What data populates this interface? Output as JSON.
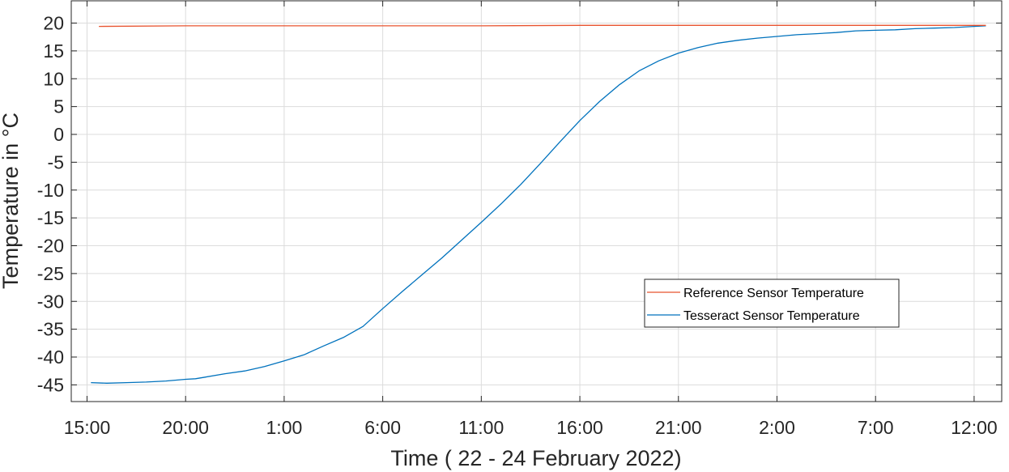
{
  "chart_data": {
    "type": "line",
    "xlabel": "Time ( 22 - 24 February 2022)",
    "ylabel": "Temperature in °C",
    "x_unit": "hours from 22 February 2022 00:00",
    "xlim": [
      14.2,
      61.4
    ],
    "ylim": [
      -48,
      24
    ],
    "x_ticks": [
      15,
      20,
      25,
      30,
      35,
      40,
      45,
      50,
      55,
      60
    ],
    "x_tick_labels": [
      "15:00",
      "20:00",
      "1:00",
      "6:00",
      "11:00",
      "16:00",
      "21:00",
      "2:00",
      "7:00",
      "12:00"
    ],
    "y_ticks": [
      -45,
      -40,
      -35,
      -30,
      -25,
      -20,
      -15,
      -10,
      -5,
      0,
      5,
      10,
      15,
      20
    ],
    "y_tick_labels": [
      "-45",
      "-40",
      "-35",
      "-30",
      "-25",
      "-20",
      "-15",
      "-10",
      "-5",
      "0",
      "5",
      "10",
      "15",
      "20"
    ],
    "grid": true,
    "legend_position": "lower-right",
    "series": [
      {
        "name": "Reference Sensor Temperature",
        "color": "#e8532f",
        "x": [
          15.6,
          20,
          25,
          30,
          35,
          40,
          45,
          50,
          55,
          60.6
        ],
        "y": [
          19.4,
          19.5,
          19.5,
          19.5,
          19.5,
          19.6,
          19.6,
          19.6,
          19.6,
          19.6
        ]
      },
      {
        "name": "Tesseract Sensor Temperature",
        "color": "#0072bd",
        "x": [
          15.2,
          16,
          17,
          18,
          19,
          20,
          20.5,
          21,
          22,
          23,
          24,
          25,
          26,
          27,
          28,
          29,
          30,
          31,
          32,
          33,
          34,
          35,
          36,
          37,
          38,
          39,
          40,
          41,
          42,
          43,
          44,
          45,
          46,
          47,
          48,
          49,
          50,
          51,
          52,
          53,
          54,
          55,
          56,
          57,
          58,
          59,
          60,
          60.6
        ],
        "y": [
          -44.6,
          -44.7,
          -44.6,
          -44.5,
          -44.3,
          -44.0,
          -43.9,
          -43.6,
          -43.0,
          -42.5,
          -41.7,
          -40.7,
          -39.6,
          -38.0,
          -36.5,
          -34.5,
          -31.3,
          -28.2,
          -25.2,
          -22.2,
          -19.0,
          -15.8,
          -12.5,
          -9.0,
          -5.2,
          -1.3,
          2.5,
          5.9,
          8.9,
          11.4,
          13.2,
          14.6,
          15.6,
          16.4,
          16.9,
          17.3,
          17.6,
          17.9,
          18.1,
          18.3,
          18.6,
          18.7,
          18.8,
          19.0,
          19.1,
          19.2,
          19.4,
          19.5
        ]
      }
    ]
  }
}
